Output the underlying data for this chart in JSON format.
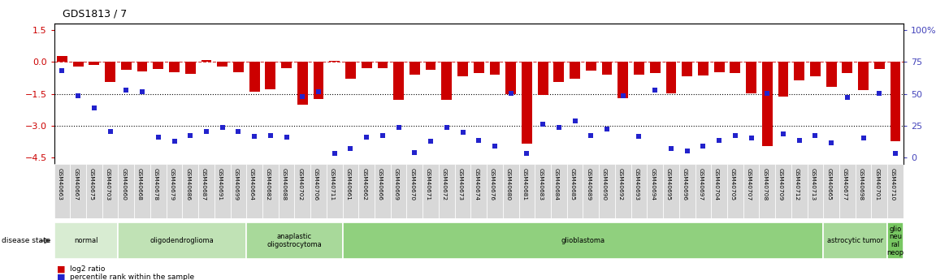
{
  "title": "GDS1813 / 7",
  "samples": [
    "GSM40663",
    "GSM40667",
    "GSM40675",
    "GSM40703",
    "GSM40660",
    "GSM40668",
    "GSM40678",
    "GSM40679",
    "GSM40686",
    "GSM40687",
    "GSM40691",
    "GSM40699",
    "GSM40664",
    "GSM40682",
    "GSM40688",
    "GSM40702",
    "GSM40706",
    "GSM40711",
    "GSM40661",
    "GSM40662",
    "GSM40666",
    "GSM40669",
    "GSM40670",
    "GSM40671",
    "GSM40672",
    "GSM40673",
    "GSM40674",
    "GSM40676",
    "GSM40680",
    "GSM40681",
    "GSM40683",
    "GSM40684",
    "GSM40685",
    "GSM40689",
    "GSM40690",
    "GSM40692",
    "GSM40693",
    "GSM40694",
    "GSM40695",
    "GSM40696",
    "GSM40697",
    "GSM40704",
    "GSM40705",
    "GSM40707",
    "GSM40708",
    "GSM40709",
    "GSM40712",
    "GSM40713",
    "GSM40665",
    "GSM40677",
    "GSM40698",
    "GSM40701",
    "GSM40710"
  ],
  "log2_ratio": [
    0.28,
    -0.22,
    -0.15,
    -0.95,
    -0.38,
    -0.45,
    -0.32,
    -0.48,
    -0.55,
    0.08,
    -0.22,
    -0.48,
    -1.4,
    -1.3,
    -0.28,
    -2.0,
    -1.75,
    0.05,
    -0.78,
    -0.28,
    -0.28,
    -1.8,
    -0.58,
    -0.38,
    -1.78,
    -0.68,
    -0.52,
    -0.58,
    -1.5,
    -3.85,
    -1.55,
    -0.95,
    -0.78,
    -0.42,
    -0.58,
    -1.72,
    -0.58,
    -0.52,
    -1.48,
    -0.68,
    -0.62,
    -0.48,
    -0.52,
    -1.48,
    -3.95,
    -1.65,
    -0.88,
    -0.68,
    -1.18,
    -0.52,
    -1.32,
    -0.32,
    -3.75
  ],
  "percentile": [
    -0.42,
    -1.58,
    -2.18,
    -3.28,
    -1.32,
    -1.42,
    -3.55,
    -3.75,
    -3.45,
    -3.28,
    -3.08,
    -3.28,
    -3.52,
    -3.48,
    -3.55,
    -1.62,
    -1.42,
    -4.32,
    -4.08,
    -3.55,
    -3.45,
    -3.08,
    -4.28,
    -3.75,
    -3.08,
    -3.32,
    -3.68,
    -3.98,
    -1.48,
    -4.32,
    -2.92,
    -3.08,
    -2.78,
    -3.48,
    -3.18,
    -1.58,
    -3.52,
    -1.32,
    -4.08,
    -4.18,
    -3.98,
    -3.68,
    -3.48,
    -3.58,
    -1.48,
    -3.38,
    -3.68,
    -3.48,
    -3.82,
    -1.68,
    -3.58,
    -1.48,
    -4.32
  ],
  "disease_groups": [
    {
      "label": "normal",
      "start": 0,
      "end": 4,
      "color": "#d8ecd2"
    },
    {
      "label": "oligodendroglioma",
      "start": 4,
      "end": 12,
      "color": "#c0e2b5"
    },
    {
      "label": "anaplastic\noligostrocytoma",
      "start": 12,
      "end": 18,
      "color": "#a8d99a"
    },
    {
      "label": "glioblastoma",
      "start": 18,
      "end": 48,
      "color": "#90d07e"
    },
    {
      "label": "astrocytic tumor",
      "start": 48,
      "end": 52,
      "color": "#a8d99a"
    },
    {
      "label": "glio\nneu\nral\nneop",
      "start": 52,
      "end": 53,
      "color": "#78c762"
    }
  ],
  "ylim": [
    -4.8,
    1.8
  ],
  "yticks_left": [
    1.5,
    0.0,
    -1.5,
    -3.0,
    -4.5
  ],
  "right_axis_ticks": [
    {
      "label": "100%",
      "y": 1.5
    },
    {
      "label": "75",
      "y": 0.0
    },
    {
      "label": "50",
      "y": -1.5
    },
    {
      "label": "25",
      "y": -3.0
    },
    {
      "label": "0",
      "y": -4.5
    }
  ],
  "bar_color": "#cc0000",
  "dot_color": "#2222cc",
  "hline_y": 0.0,
  "dotted_lines": [
    -1.5,
    -3.0
  ],
  "bar_width": 0.65,
  "tick_label_fontsize": 5.3,
  "ylabel_color": "#cc0000",
  "right_label_color": "#4444bb"
}
